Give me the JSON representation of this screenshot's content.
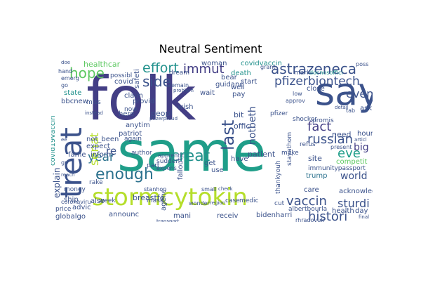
{
  "title": "Neutral Sentiment",
  "words": {
    "folk": "folk",
    "same": "same",
    "say": "say",
    "treat": "treat",
    "stormcytokin": "stormcytokin",
    "hope": "hope",
    "enough": "enough",
    "astrazeneca": "astrazeneca",
    "pfizerbiontech": "pfizerbiontech",
    "effort": "effort",
    "immut": "immut",
    "side": "side",
    "creat": "creat",
    "year": "year",
    "last": "last",
    "even": "even",
    "fact": "fact",
    "russian": "russian",
    "eve": "eve",
    "big": "big",
    "world": "world",
    "vaccin": "vaccin",
    "histori": "histori",
    "sturdi": "sturdi",
    "senat": "senat",
    "re": "re",
    "explain": "explain",
    "breastfe": "breastfe",
    "announc": "announc",
    "bidenharri": "bidenharri",
    "trump": "trump",
    "patient": "patient",
    "notbeth": "notbeth",
    "healthcar": "healthcar",
    "covidvaccin": "covidvaccin",
    "death": "death",
    "guidanc": "guidanc",
    "covid19vaccin": "covid19vaccin",
    "acknowledg": "acknowledg",
    "albertbourla": "albertbourla",
    "globalgo": "globalgo",
    "advic": "advic",
    "ship": "ship",
    "not_been": "not_been",
    "expect": "expect",
    "inform": "inform",
    "fame": "fame",
    "patriot": "patriot",
    "anytim": "anytim",
    "peopl": "peopl",
    "wish": "wish",
    "wait": "wait",
    "claim": "claim",
    "provid": "provid",
    "state": "state",
    "bbcnew": "bbcnew",
    "mani": "mani",
    "receiv": "receiv",
    "site": "site",
    "care": "care",
    "health": "health",
    "day": "day",
    "ask": "ask",
    "hour": "hour",
    "need": "need",
    "close": "close",
    "mark": "mark",
    "start": "start",
    "well": "well",
    "pay": "pay",
    "bit": "bit",
    "offic": "offic",
    "get": "get",
    "have": "have",
    "use": "use",
    "medic": "medic",
    "case": "case",
    "cut": "cut",
    "part": "part",
    "mask": "mask",
    "agenc": "agenc",
    "fallout": "fallout",
    "here": "here",
    "now": "now",
    "again": "again",
    "also": "also",
    "rake": "rake",
    "price": "price",
    "money": "money",
    "week": "week",
    "author": "author",
    "sudden": "sudden",
    "miss": "miss",
    "woman": "woman",
    "bear": "bear",
    "dream": "dream",
    "possibl": "possibl",
    "safeti": "safeti",
    "covid": "covid",
    "competit": "competit",
    "stayathom": "stayathom",
    "thankyouh": "thankyouh",
    "pfizer": "pfizer",
    "shocker": "shocker",
    "refus": "refus",
    "promis": "promis",
    "immunitypassport": "immunitypassport",
    "make": "make",
    "doe": "doe",
    "hand": "hand",
    "emerg": "emerg",
    "go": "go",
    "coronaviru": "coronaviru",
    "wonder": "wonder",
    "stanhop": "stanhop",
    "rhragovuk": "rhragovuk",
    "grant": "grant",
    "docnosoffici": "docnosoffici",
    "poss": "poss",
    "final": "final",
    "present": "present",
    "tab": "tab",
    "approv": "approv",
    "low": "low",
    "transport": "transport",
    "apprentic": "apprentic",
    "remain": "remain",
    "problem": "problem",
    "detail": "detail",
    "expens": "expens",
    "gp": "gp",
    "small": "small",
    "pfizerproud": "pfizerproud",
    "instead": "instead",
    "reach": "reach",
    "region": "region",
    "check": "check",
    "articl": "articl",
    "ee": "ee"
  }
}
